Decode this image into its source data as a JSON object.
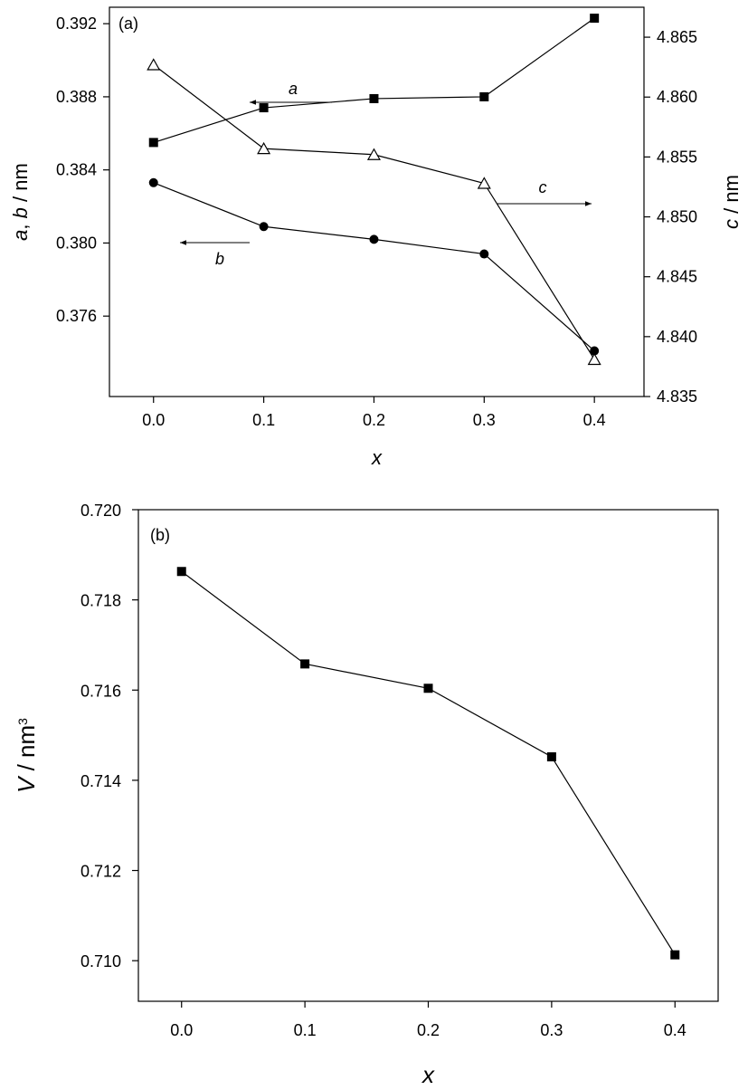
{
  "chart_data": [
    {
      "type": "line",
      "panel_label": "(a)",
      "x": [
        0.0,
        0.1,
        0.2,
        0.3,
        0.4
      ],
      "x_tick_labels": [
        "0.0",
        "0.1",
        "0.2",
        "0.3",
        "0.4"
      ],
      "xlabel": "x",
      "xlim": [
        -0.04,
        0.445
      ],
      "ylabel_left": {
        "italic": "a",
        "mid": ", ",
        "italic2": "b",
        "unit": " / nm"
      },
      "ylim_left": [
        0.3716,
        0.3929
      ],
      "y_left_ticks": [
        0.376,
        0.38,
        0.384,
        0.388,
        0.392
      ],
      "y_left_tick_labels": [
        "0.376",
        "0.380",
        "0.384",
        "0.388",
        "0.392"
      ],
      "ylabel_right": {
        "italic": "c",
        "unit": " / nm"
      },
      "ylim_right": [
        4.835,
        4.8675
      ],
      "y_right_ticks": [
        4.835,
        4.84,
        4.845,
        4.85,
        4.855,
        4.86,
        4.865
      ],
      "y_right_tick_labels": [
        "4.835",
        "4.840",
        "4.845",
        "4.850",
        "4.855",
        "4.860",
        "4.865"
      ],
      "series": [
        {
          "name": "a",
          "axis": "left",
          "marker": "square",
          "values": [
            0.3855,
            0.3874,
            0.3879,
            0.388,
            0.3923
          ]
        },
        {
          "name": "b",
          "axis": "left",
          "marker": "circle",
          "values": [
            0.3833,
            0.3809,
            0.3802,
            0.3794,
            0.3741
          ]
        },
        {
          "name": "c",
          "axis": "right",
          "marker": "open-triangle",
          "values": [
            4.8627,
            4.8557,
            4.8552,
            4.8528,
            4.8381
          ]
        }
      ],
      "annotations": [
        {
          "text": "a",
          "points_to": "left",
          "series": "a"
        },
        {
          "text": "b",
          "points_to": "left",
          "series": "b"
        },
        {
          "text": "c",
          "points_to": "right",
          "series": "c"
        }
      ],
      "grid": false
    },
    {
      "type": "line",
      "panel_label": "(b)",
      "x": [
        0.0,
        0.1,
        0.2,
        0.3,
        0.4
      ],
      "x_tick_labels": [
        "0.0",
        "0.1",
        "0.2",
        "0.3",
        "0.4"
      ],
      "xlabel": "x",
      "xlim": [
        -0.035,
        0.435
      ],
      "ylabel": {
        "italic": "V",
        "unit": " / nm",
        "sup": "3"
      },
      "ylim": [
        0.7091,
        0.72
      ],
      "y_ticks": [
        0.71,
        0.712,
        0.714,
        0.716,
        0.718,
        0.72
      ],
      "y_tick_labels": [
        "0.710",
        "0.712",
        "0.714",
        "0.716",
        "0.718",
        "0.720"
      ],
      "series": [
        {
          "name": "V",
          "marker": "square",
          "values": [
            0.71863,
            0.71658,
            0.71604,
            0.71452,
            0.71013
          ]
        }
      ],
      "grid": false
    }
  ]
}
